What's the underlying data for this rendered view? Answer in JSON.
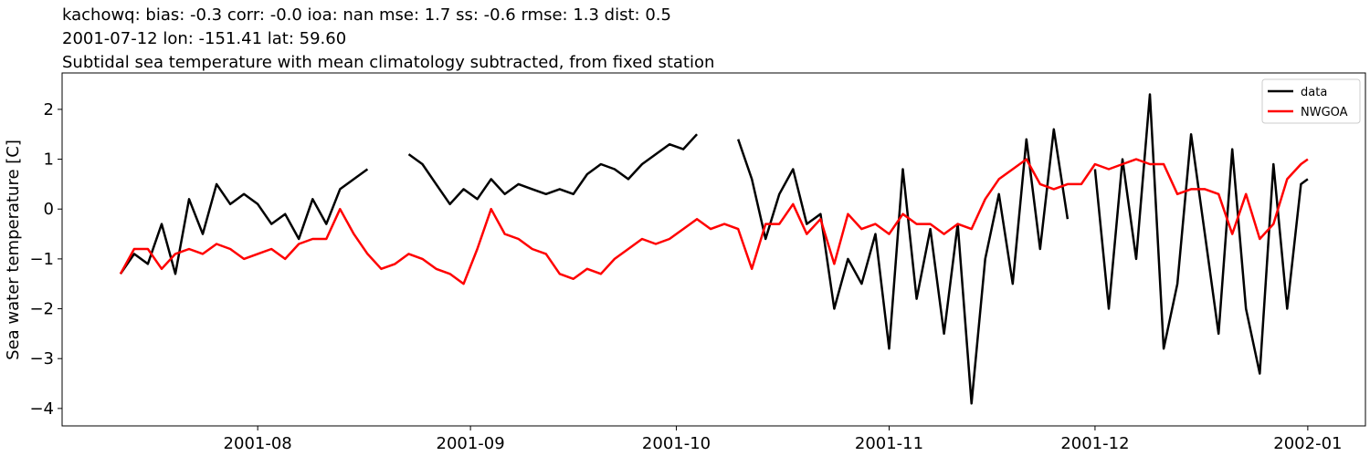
{
  "chart_data": {
    "type": "line",
    "title_lines": [
      "kachowq: bias: -0.3  corr: -0.0  ioa: nan  mse: 1.7  ss: -0.6  rmse: 1.3  dist: 0.5",
      "2001-07-12 lon: -151.41 lat: 59.60",
      "Subtidal sea temperature with mean climatology subtracted, from fixed station"
    ],
    "ylabel": "Sea water temperature [C]",
    "x": [
      193,
      195,
      197,
      199,
      201,
      203,
      205,
      207,
      209,
      211,
      213,
      215,
      217,
      219,
      221,
      223,
      225,
      227,
      229,
      231,
      233,
      235,
      237,
      239,
      241,
      243,
      245,
      247,
      249,
      251,
      253,
      255,
      257,
      259,
      261,
      263,
      265,
      267,
      269,
      271,
      273,
      275,
      277,
      279,
      281,
      283,
      285,
      287,
      289,
      291,
      293,
      295,
      297,
      299,
      301,
      303,
      305,
      307,
      309,
      311,
      313,
      315,
      317,
      319,
      321,
      323,
      325,
      327,
      329,
      331,
      333,
      335,
      337,
      339,
      341,
      343,
      345,
      347,
      349,
      351,
      353,
      355,
      357,
      359,
      361,
      363,
      365,
      366
    ],
    "series": [
      {
        "name": "data",
        "color": "#000000",
        "values": [
          -1.3,
          -0.9,
          -1.1,
          -0.3,
          -1.3,
          0.2,
          -0.5,
          0.5,
          0.1,
          0.3,
          0.1,
          -0.3,
          -0.1,
          -0.6,
          0.2,
          -0.3,
          0.4,
          0.6,
          0.8,
          null,
          null,
          1.1,
          0.9,
          0.5,
          0.1,
          0.4,
          0.2,
          0.6,
          0.3,
          0.5,
          0.4,
          0.3,
          0.4,
          0.3,
          0.7,
          0.9,
          0.8,
          0.6,
          0.9,
          1.1,
          1.3,
          1.2,
          1.5,
          null,
          null,
          1.4,
          0.6,
          -0.6,
          0.3,
          0.8,
          -0.3,
          -0.1,
          -2.0,
          -1.0,
          -1.5,
          -0.5,
          -2.8,
          0.8,
          -1.8,
          -0.4,
          -2.5,
          -0.3,
          -3.9,
          -1.0,
          0.3,
          -1.5,
          1.4,
          -0.8,
          1.6,
          -0.2,
          null,
          0.8,
          -2.0,
          1.0,
          -1.0,
          2.3,
          -2.8,
          -1.5,
          1.5,
          -0.5,
          -2.5,
          1.2,
          -2.0,
          -3.3,
          0.9,
          -2.0,
          0.5,
          0.6
        ]
      },
      {
        "name": "NWGOA",
        "color": "#ff0000",
        "values": [
          -1.3,
          -0.8,
          -0.8,
          -1.2,
          -0.9,
          -0.8,
          -0.9,
          -0.7,
          -0.8,
          -1.0,
          -0.9,
          -0.8,
          -1.0,
          -0.7,
          -0.6,
          -0.6,
          0.0,
          -0.5,
          -0.9,
          -1.2,
          -1.1,
          -0.9,
          -1.0,
          -1.2,
          -1.3,
          -1.5,
          -0.8,
          0.0,
          -0.5,
          -0.6,
          -0.8,
          -0.9,
          -1.3,
          -1.4,
          -1.2,
          -1.3,
          -1.0,
          -0.8,
          -0.6,
          -0.7,
          -0.6,
          -0.4,
          -0.2,
          -0.4,
          -0.3,
          -0.4,
          -1.2,
          -0.3,
          -0.3,
          0.1,
          -0.5,
          -0.2,
          -1.1,
          -0.1,
          -0.4,
          -0.3,
          -0.5,
          -0.1,
          -0.3,
          -0.3,
          -0.5,
          -0.3,
          -0.4,
          0.2,
          0.6,
          0.8,
          1.0,
          0.5,
          0.4,
          0.5,
          0.5,
          0.9,
          0.8,
          0.9,
          1.0,
          0.9,
          0.9,
          0.3,
          0.4,
          0.4,
          0.3,
          -0.5,
          0.3,
          -0.6,
          -0.3,
          0.6,
          0.9,
          1.0
        ]
      }
    ],
    "xlim": [
      184.5,
      374.4
    ],
    "xticks": [
      {
        "value": 213,
        "label": "2001-08"
      },
      {
        "value": 244,
        "label": "2001-09"
      },
      {
        "value": 274,
        "label": "2001-10"
      },
      {
        "value": 305,
        "label": "2001-11"
      },
      {
        "value": 335,
        "label": "2001-12"
      },
      {
        "value": 366,
        "label": "2002-01"
      }
    ],
    "ylim": [
      -4.35,
      2.73
    ],
    "yticks": [
      {
        "value": -4,
        "label": "−4"
      },
      {
        "value": -3,
        "label": "−3"
      },
      {
        "value": -2,
        "label": "−2"
      },
      {
        "value": -1,
        "label": "−1"
      },
      0,
      1,
      2
    ],
    "legend": "upper right"
  }
}
